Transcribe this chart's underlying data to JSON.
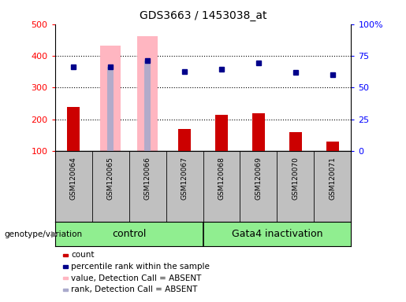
{
  "title": "GDS3663 / 1453038_at",
  "samples": [
    "GSM120064",
    "GSM120065",
    "GSM120066",
    "GSM120067",
    "GSM120068",
    "GSM120069",
    "GSM120070",
    "GSM120071"
  ],
  "count_values": [
    238,
    null,
    null,
    170,
    213,
    220,
    160,
    130
  ],
  "percentile_values": [
    365,
    365,
    385,
    350,
    358,
    378,
    348,
    340
  ],
  "absent_value_bars": [
    null,
    433,
    463,
    null,
    null,
    null,
    null,
    null
  ],
  "absent_rank_bars": [
    null,
    365,
    385,
    null,
    null,
    null,
    null,
    null
  ],
  "ylim_left": [
    100,
    500
  ],
  "ylim_right": [
    0,
    100
  ],
  "yticks_left": [
    100,
    200,
    300,
    400,
    500
  ],
  "yticks_right": [
    0,
    25,
    50,
    75,
    100
  ],
  "ytick_labels_right": [
    "0",
    "25",
    "50",
    "75",
    "100%"
  ],
  "bar_color_red": "#CC0000",
  "bar_color_pink": "#FFB6C1",
  "bar_color_lightblue": "#AAAACC",
  "dot_color_blue": "#00008B",
  "label_area_color": "#C0C0C0",
  "group_color": "#90EE90",
  "control_group": [
    0,
    1,
    2,
    3
  ],
  "gata4_group": [
    4,
    5,
    6,
    7
  ],
  "legend_items": [
    {
      "label": "count",
      "color": "#CC0000"
    },
    {
      "label": "percentile rank within the sample",
      "color": "#00008B"
    },
    {
      "label": "value, Detection Call = ABSENT",
      "color": "#FFB6C1"
    },
    {
      "label": "rank, Detection Call = ABSENT",
      "color": "#AAAACC"
    }
  ]
}
